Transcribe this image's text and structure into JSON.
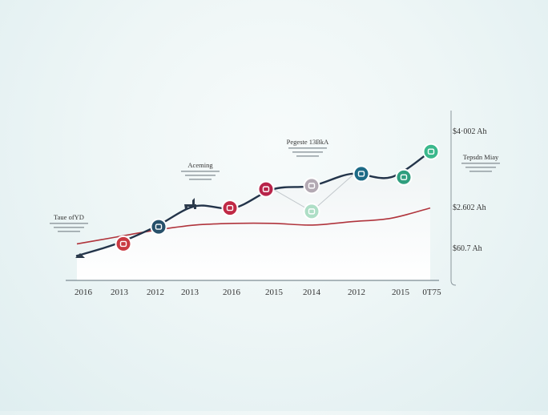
{
  "chart_data": {
    "type": "line",
    "title": "",
    "xlabel": "",
    "ylabel": "",
    "categories": [
      "2016",
      "2013",
      "2012",
      "2013",
      "2016",
      "2015",
      "2014",
      "2012",
      "2015",
      "0T75"
    ],
    "series": [
      {
        "values": [
          5,
          12,
          22,
          34,
          33,
          44,
          46,
          53,
          51,
          66
        ],
        "color": "#23344a"
      },
      {
        "values": [
          12,
          16,
          20,
          23,
          24,
          24,
          23,
          25,
          27,
          33
        ],
        "color": "#b0343c"
      }
    ],
    "ylim": [
      0,
      75
    ],
    "right_axis_labels": [
      "$4·002 Ah",
      "$2.602 Ah",
      "$60.7 Ah"
    ],
    "annotations": [
      {
        "title": "Taue ofYD"
      },
      {
        "title": "Aceming"
      },
      {
        "title": "Pegeste 13BkA"
      },
      {
        "title": "Tepsdn Miay"
      }
    ],
    "markers": [
      {
        "category": "2013",
        "series": 0,
        "color": "#c93a42",
        "icon": "gift-icon"
      },
      {
        "category": "2012",
        "series": 0,
        "color": "#27506a",
        "icon": "leaf-icon"
      },
      {
        "category": "2016",
        "series": 0,
        "color": "#c02945",
        "icon": "box-icon"
      },
      {
        "category": "2015",
        "series": 0,
        "color": "#b8244a",
        "icon": "flag-icon"
      },
      {
        "category": "2014",
        "series": 0,
        "color": "#b3a9b3",
        "icon": "dots-icon"
      },
      {
        "category": "2012",
        "series": 0,
        "color": "#1d6a86",
        "icon": "arrows-icon"
      },
      {
        "category": "2015",
        "series": 0,
        "color": "#2f9e7e",
        "icon": "wave-icon"
      },
      {
        "category": "0T75",
        "series": 0,
        "color": "#3bb88c",
        "icon": "chart-icon"
      },
      {
        "category": "2014",
        "series": null,
        "y": 31,
        "color": "#aedec6",
        "icon": "dots-icon"
      }
    ],
    "grid": false
  }
}
